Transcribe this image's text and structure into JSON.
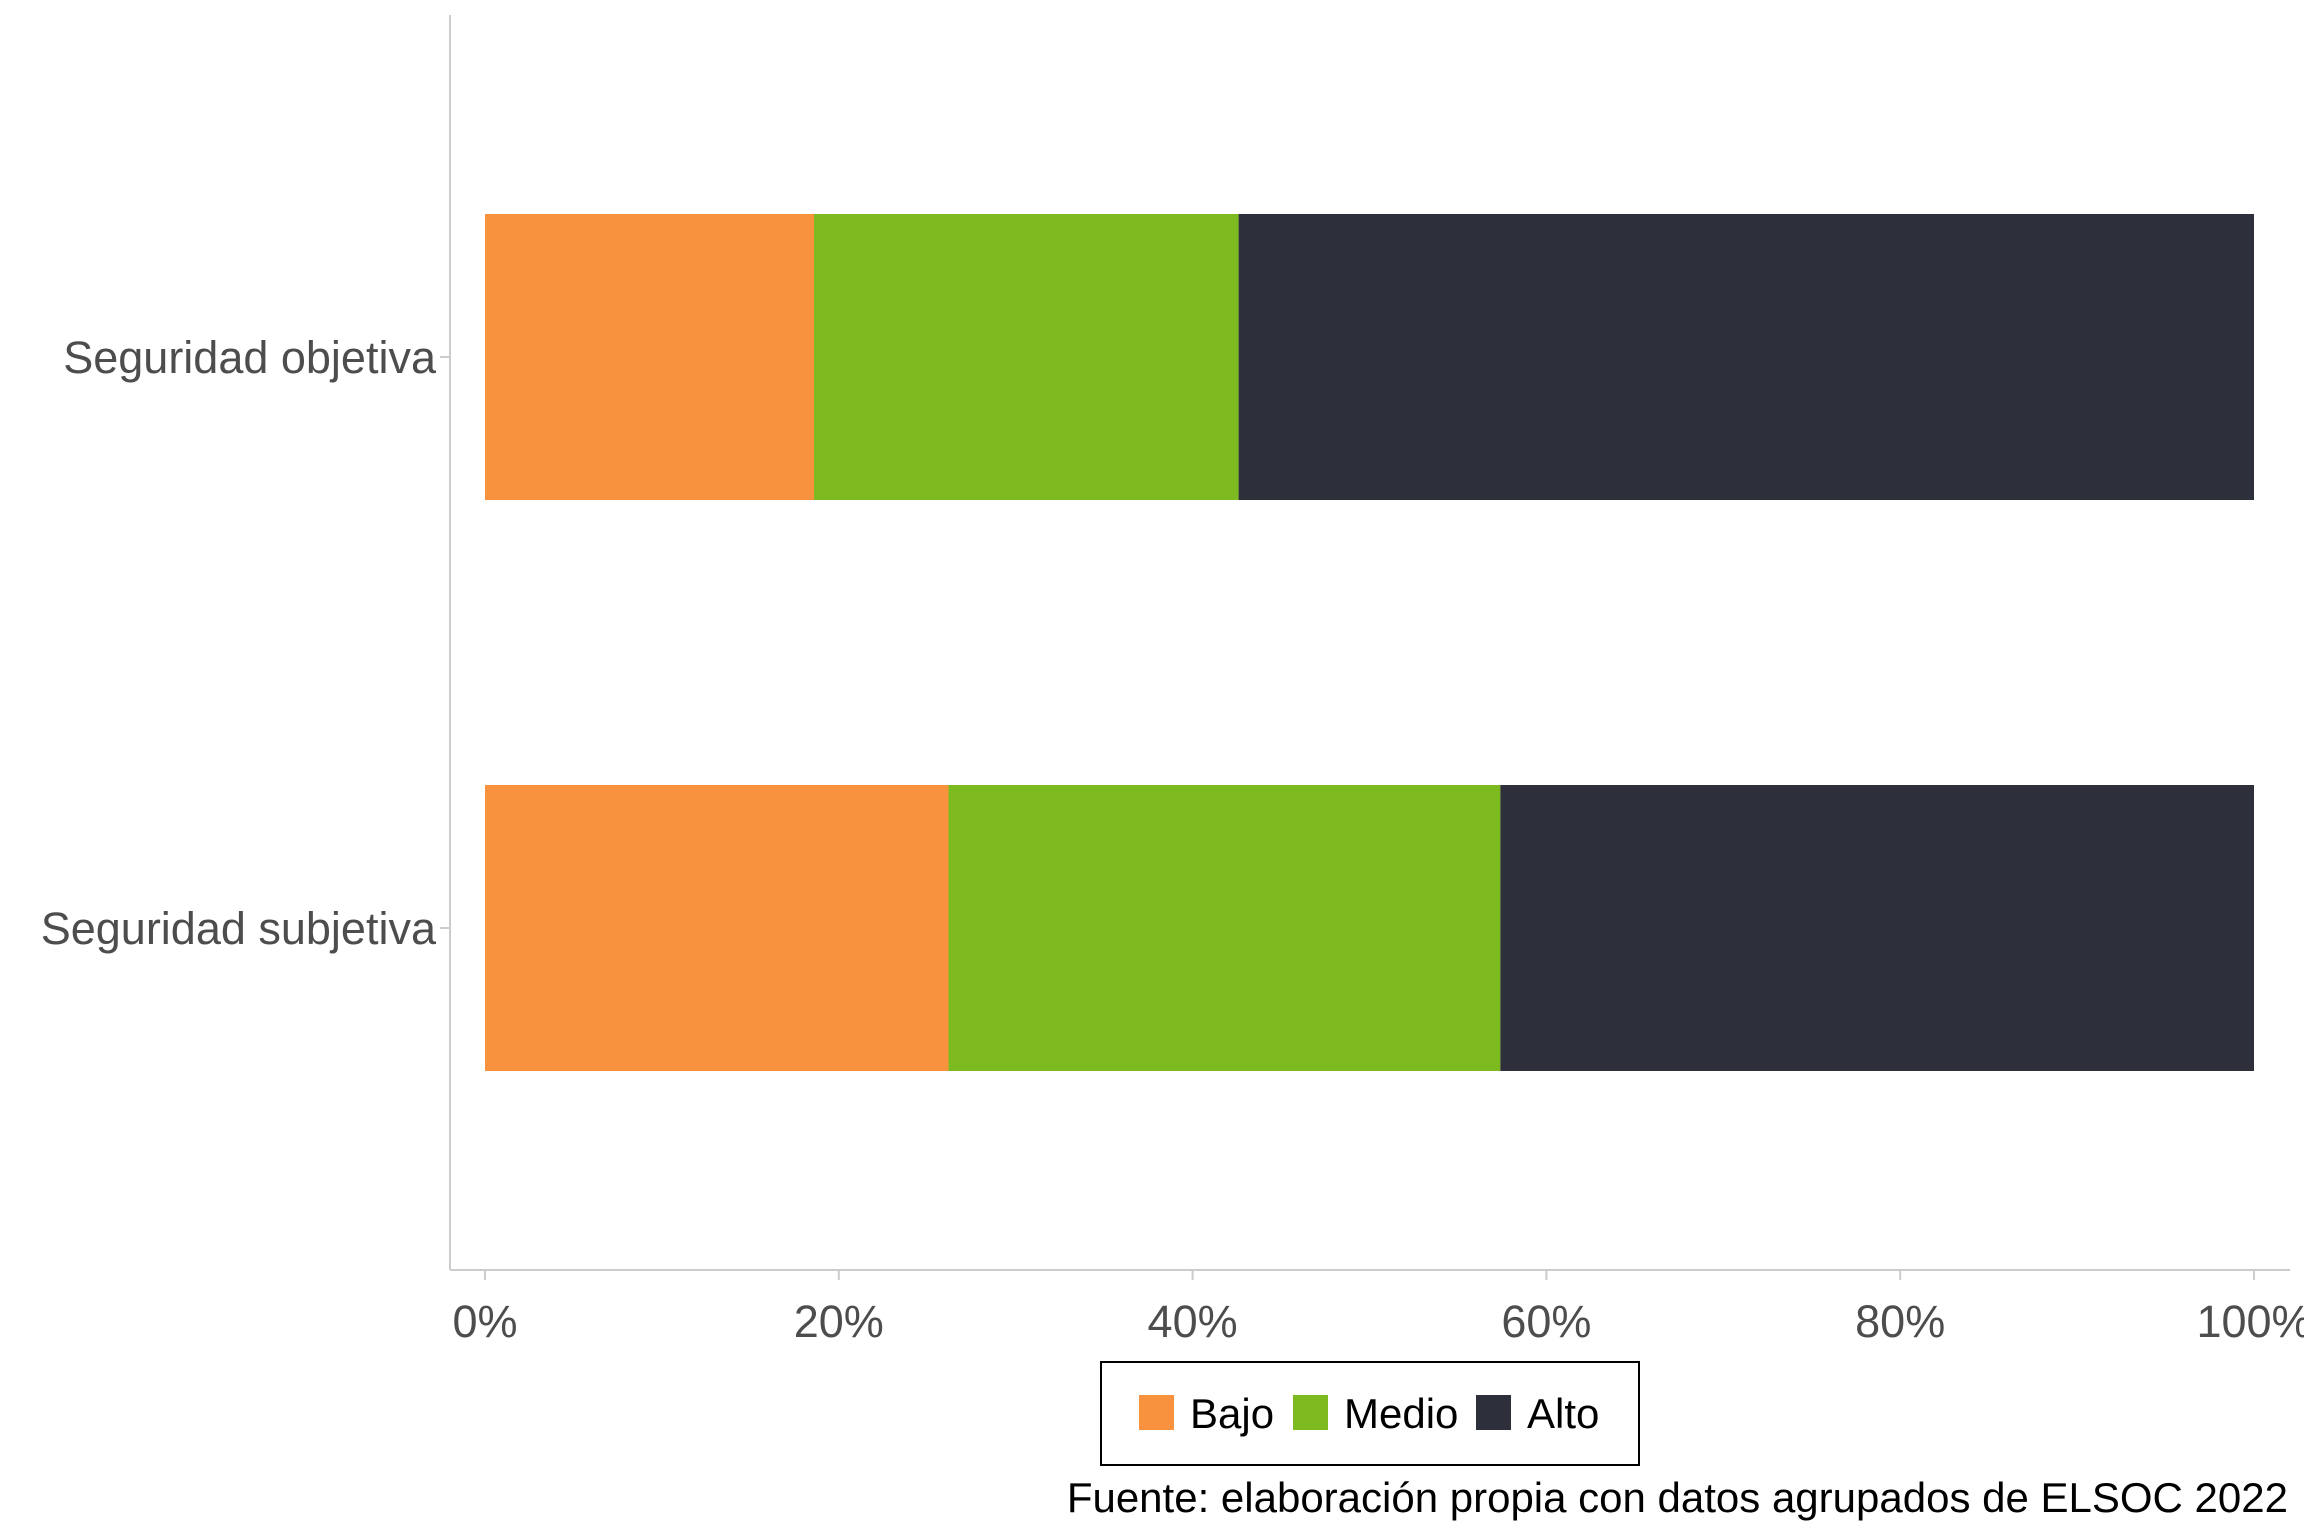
{
  "chart_data": {
    "type": "bar",
    "orientation": "horizontal",
    "stacked": true,
    "normalized": true,
    "categories": [
      "Seguridad objetiva",
      "Seguridad subjetiva"
    ],
    "series": [
      {
        "name": "Bajo",
        "color": "#F8923E",
        "values": [
          18.6,
          26.2
        ]
      },
      {
        "name": "Medio",
        "color": "#7CBA20",
        "values": [
          24.0,
          31.2
        ]
      },
      {
        "name": "Alto",
        "color": "#2D303B",
        "values": [
          57.4,
          42.6
        ]
      }
    ],
    "xlim": [
      0,
      100
    ],
    "x_ticks": [
      {
        "value": 0,
        "label": "0%"
      },
      {
        "value": 20,
        "label": "20%"
      },
      {
        "value": 40,
        "label": "40%"
      },
      {
        "value": 60,
        "label": "60%"
      },
      {
        "value": 80,
        "label": "80%"
      },
      {
        "value": 100,
        "label": "100%"
      }
    ],
    "title": "",
    "xlabel": "",
    "ylabel": "",
    "grid": false,
    "legend_position": "bottom",
    "caption": "Fuente: elaboración propia con datos agrupados de ELSOC 2022"
  }
}
